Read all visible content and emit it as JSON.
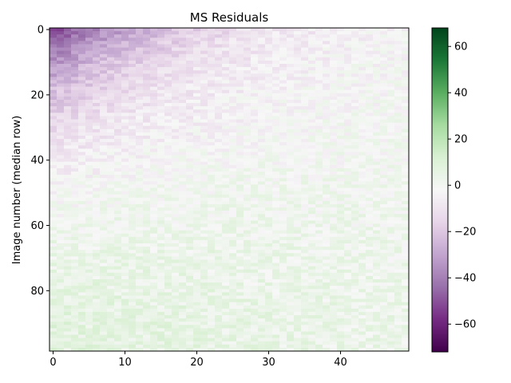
{
  "chart_data": {
    "type": "heatmap",
    "title": "MS Residuals",
    "xlabel": "",
    "ylabel": "Image number (median row)",
    "grid": false,
    "n_cols": 50,
    "n_rows": 99,
    "x_range": [
      0,
      49
    ],
    "y_range": [
      0,
      98
    ],
    "y_inverted": true,
    "x_ticks": [
      0,
      10,
      20,
      30,
      40
    ],
    "y_ticks": [
      0,
      20,
      40,
      60,
      80
    ],
    "colormap": "PRGn",
    "colorbar": {
      "vmin": -72,
      "vmax": 68,
      "ticks": [
        -60,
        -40,
        -20,
        0,
        20,
        40,
        60
      ],
      "tick_labels": [
        "−60",
        "−40",
        "−20",
        "0",
        "20",
        "40",
        "60"
      ]
    },
    "pattern": {
      "description_rows": "values approx -55 at top-left (row 0, col 0), rising to about +8 at bottom rows",
      "top_left_value": -55,
      "bottom_value": 8,
      "noise_amplitude": 6
    },
    "colors": {
      "low": "#40004b",
      "mid": "#f7f7f7",
      "high": "#00441b"
    }
  }
}
